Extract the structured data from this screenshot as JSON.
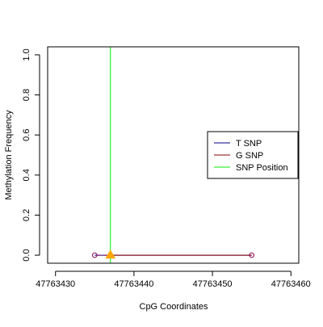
{
  "chart_data": {
    "type": "line",
    "title": "",
    "xlabel": "CpG Coordinates",
    "ylabel": "Methylation Frequency",
    "xlim": [
      47763429,
      47763461
    ],
    "ylim": [
      -0.04,
      1.04
    ],
    "x_ticks": [
      47763430,
      47763440,
      47763450,
      47763460
    ],
    "x_tick_labels": [
      "47763430",
      "47763440",
      "47763450",
      "47763460"
    ],
    "y_ticks": [
      0.0,
      0.2,
      0.4,
      0.6,
      0.8,
      1.0
    ],
    "y_tick_labels": [
      "0.0",
      "0.2",
      "0.4",
      "0.6",
      "0.8",
      "1.0"
    ],
    "grid": false,
    "legend_position": "right",
    "series": [
      {
        "name": "T SNP",
        "color": "#00008b",
        "x": [
          47763435,
          47763455
        ],
        "y": [
          0,
          0
        ]
      },
      {
        "name": "G SNP",
        "color": "#8b0000",
        "x": [
          47763437,
          47763455
        ],
        "y": [
          0,
          0
        ]
      },
      {
        "name": "SNP Position",
        "color": "#00ee00",
        "x": [
          47763437
        ],
        "type": "vline"
      }
    ],
    "points": [
      {
        "x": 47763435,
        "y": 0,
        "shape": "open-circle",
        "color": "#8b0050"
      },
      {
        "x": 47763455,
        "y": 0,
        "shape": "open-circle",
        "color": "#8b0050"
      }
    ],
    "snp_marker": {
      "x": 47763437,
      "y": 0,
      "shape": "triangle",
      "color": "#ffa500"
    },
    "dash_segment": {
      "x": [
        47763435,
        47763437
      ],
      "y": [
        0,
        0
      ],
      "color": "#8b0050"
    },
    "legend_items": [
      {
        "label": "T SNP",
        "color": "#00008b"
      },
      {
        "label": "G SNP",
        "color": "#8b0000"
      },
      {
        "label": "SNP Position",
        "color": "#00ee00"
      }
    ]
  }
}
